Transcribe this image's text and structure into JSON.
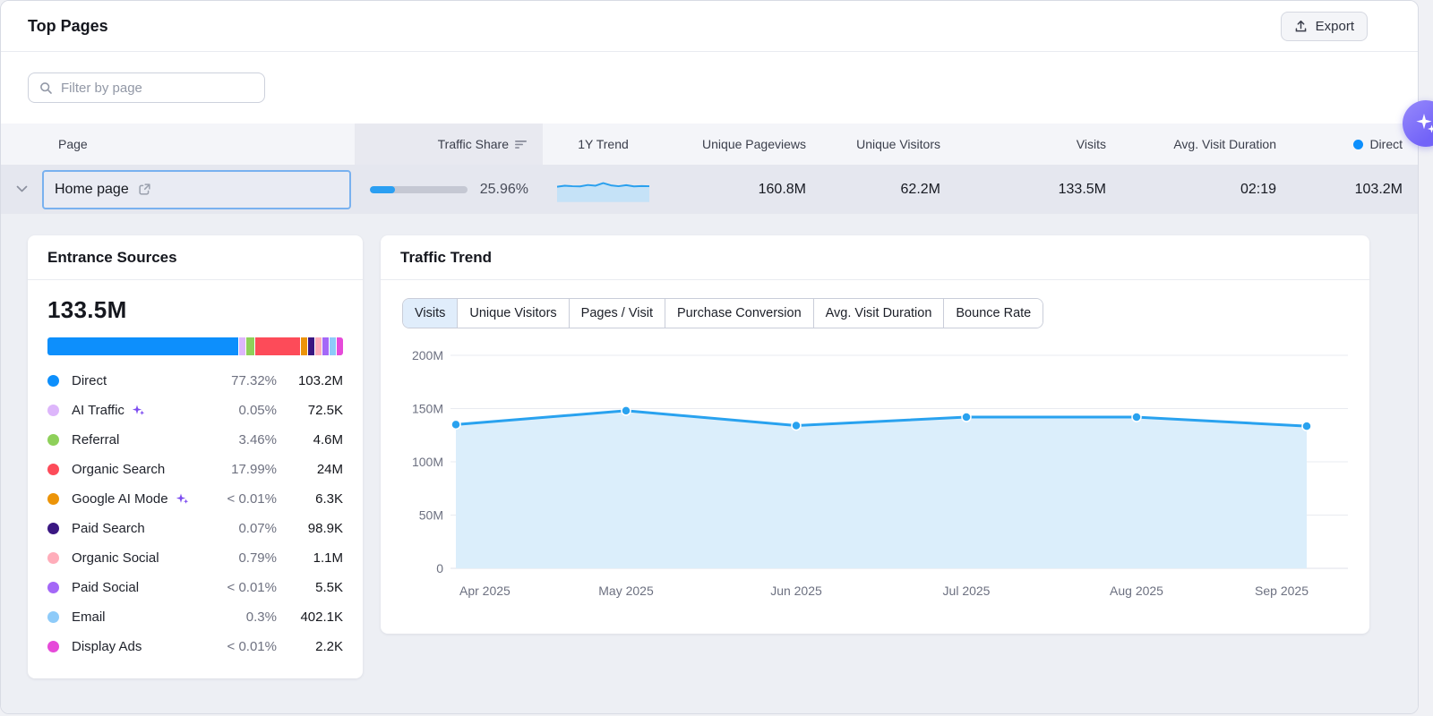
{
  "header": {
    "title": "Top Pages",
    "export_label": "Export"
  },
  "filter": {
    "placeholder": "Filter by page"
  },
  "table": {
    "columns": [
      {
        "label": "Page"
      },
      {
        "label": "Traffic Share",
        "sorted": true,
        "highlight": true
      },
      {
        "label": "1Y Trend"
      },
      {
        "label": "Unique Pageviews"
      },
      {
        "label": "Unique Visitors"
      },
      {
        "label": "Visits"
      },
      {
        "label": "Avg. Visit Duration"
      },
      {
        "label": "Direct",
        "dot_color": "#0d8ffc"
      }
    ],
    "row": {
      "page": "Home page",
      "traffic_share_pct": "25.96%",
      "traffic_share_value": 25.96,
      "unique_pageviews": "160.8M",
      "unique_visitors": "62.2M",
      "visits": "133.5M",
      "avg_visit_duration": "02:19",
      "direct": "103.2M"
    }
  },
  "entrance": {
    "title": "Entrance Sources",
    "total": "133.5M",
    "sources": [
      {
        "label": "Direct",
        "pct": "77.32%",
        "value": "103.2M",
        "share": 77.32,
        "color": "#0d8ffc"
      },
      {
        "label": "AI Traffic",
        "pct": "0.05%",
        "value": "72.5K",
        "share": 0.05,
        "color": "#ddb6fb",
        "ai_icon": true
      },
      {
        "label": "Referral",
        "pct": "3.46%",
        "value": "4.6M",
        "share": 3.46,
        "color": "#8ed05a"
      },
      {
        "label": "Organic Search",
        "pct": "17.99%",
        "value": "24M",
        "share": 17.99,
        "color": "#fd4b59"
      },
      {
        "label": "Google AI Mode",
        "pct": "< 0.01%",
        "value": "6.3K",
        "share": 0.01,
        "color": "#ec9408",
        "ai_icon": true
      },
      {
        "label": "Paid Search",
        "pct": "0.07%",
        "value": "98.9K",
        "share": 0.07,
        "color": "#3a1782"
      },
      {
        "label": "Organic Social",
        "pct": "0.79%",
        "value": "1.1M",
        "share": 0.79,
        "color": "#ffadba"
      },
      {
        "label": "Paid Social",
        "pct": "< 0.01%",
        "value": "5.5K",
        "share": 0.01,
        "color": "#a468f7"
      },
      {
        "label": "Email",
        "pct": "0.3%",
        "value": "402.1K",
        "share": 0.3,
        "color": "#8ecbf9"
      },
      {
        "label": "Display Ads",
        "pct": "< 0.01%",
        "value": "2.2K",
        "share": 0.01,
        "color": "#e64ad9"
      }
    ]
  },
  "trend": {
    "title": "Traffic Trend",
    "tabs": [
      {
        "label": "Visits",
        "active": true
      },
      {
        "label": "Unique Visitors"
      },
      {
        "label": "Pages / Visit"
      },
      {
        "label": "Purchase Conversion"
      },
      {
        "label": "Avg. Visit Duration"
      },
      {
        "label": "Bounce Rate"
      }
    ]
  },
  "chart_data": [
    {
      "name": "traffic_trend",
      "type": "area",
      "title": "Traffic Trend — Visits",
      "x": [
        "Apr 2025",
        "May 2025",
        "Jun 2025",
        "Jul 2025",
        "Aug 2025",
        "Sep 2025"
      ],
      "series": [
        {
          "name": "Visits",
          "values_m": [
            135,
            148,
            134,
            142,
            142,
            133.5
          ]
        }
      ],
      "ylim_m": [
        0,
        200
      ],
      "yticks": [
        {
          "value": 0,
          "label": "0"
        },
        {
          "value": 50,
          "label": "50M"
        },
        {
          "value": 100,
          "label": "100M"
        },
        {
          "value": 150,
          "label": "150M"
        },
        {
          "value": 200,
          "label": "200M"
        }
      ],
      "grid": true,
      "legend": false,
      "line_color": "#29a2ef",
      "fill_color": "#dbeefb"
    },
    {
      "name": "one_year_trend_sparkline",
      "type": "area",
      "series": [
        {
          "name": "1Y Trend",
          "values_norm": [
            0.45,
            0.55,
            0.5,
            0.48,
            0.62,
            0.55,
            0.8,
            0.58,
            0.5,
            0.6,
            0.48,
            0.52,
            0.5
          ]
        }
      ],
      "line_color": "#2aa0ee",
      "fill_color": "#c5e2f7"
    }
  ]
}
